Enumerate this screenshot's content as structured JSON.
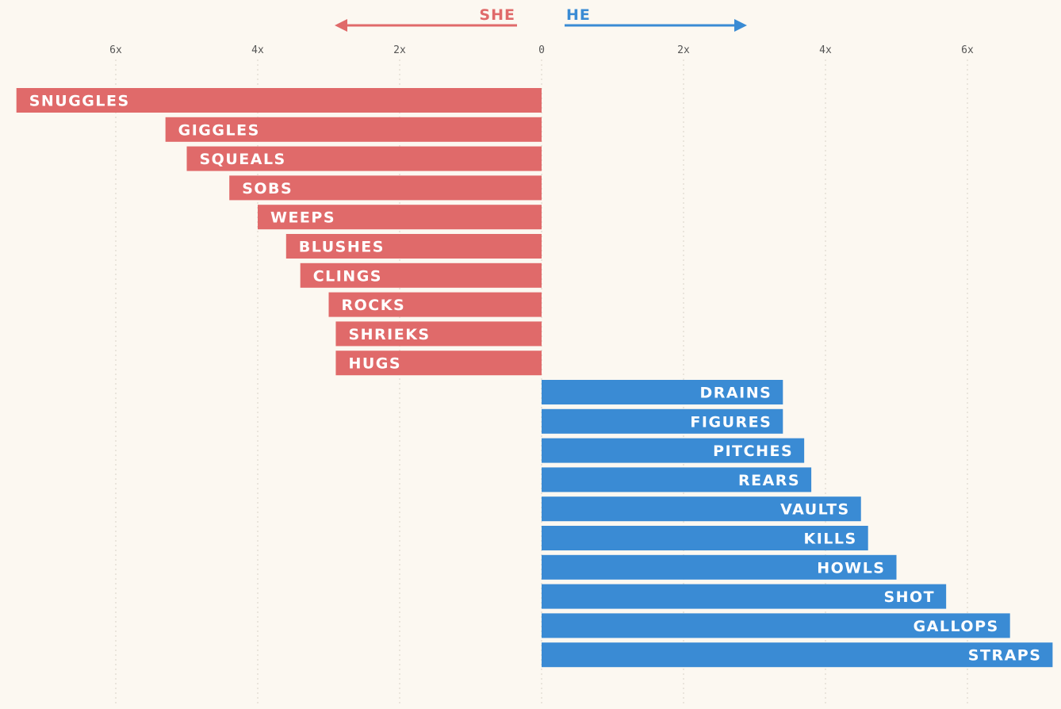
{
  "chart_data": {
    "type": "bar",
    "orientation": "horizontal-diverging",
    "title": "",
    "xlabel": "",
    "ylabel": "",
    "xlim": [
      -7.4,
      7.2
    ],
    "tick_values": [
      -6,
      -4,
      -2,
      0,
      2,
      4,
      6
    ],
    "tick_labels": [
      "6x",
      "4x",
      "2x",
      "0",
      "2x",
      "4x",
      "6x"
    ],
    "grid": true,
    "legend": {
      "she_label": "SHE",
      "he_label": "HE",
      "she_color": "#e06a6a",
      "he_color": "#3a8bd4"
    },
    "series": [
      {
        "name": "SHE",
        "direction": "left",
        "color": "#e06a6a",
        "categories": [
          "SNUGGLES",
          "GIGGLES",
          "SQUEALS",
          "SOBS",
          "WEEPS",
          "BLUSHES",
          "CLINGS",
          "ROCKS",
          "SHRIEKS",
          "HUGS"
        ],
        "values": [
          7.4,
          5.3,
          5.0,
          4.4,
          4.0,
          3.6,
          3.4,
          3.0,
          2.9,
          2.9
        ]
      },
      {
        "name": "HE",
        "direction": "right",
        "color": "#3a8bd4",
        "categories": [
          "DRAINS",
          "FIGURES",
          "PITCHES",
          "REARS",
          "VAULTS",
          "KILLS",
          "HOWLS",
          "SHOT",
          "GALLOPS",
          "STRAPS"
        ],
        "values": [
          3.4,
          3.4,
          3.7,
          3.8,
          4.5,
          4.6,
          5.0,
          5.7,
          6.6,
          7.2
        ]
      }
    ]
  }
}
